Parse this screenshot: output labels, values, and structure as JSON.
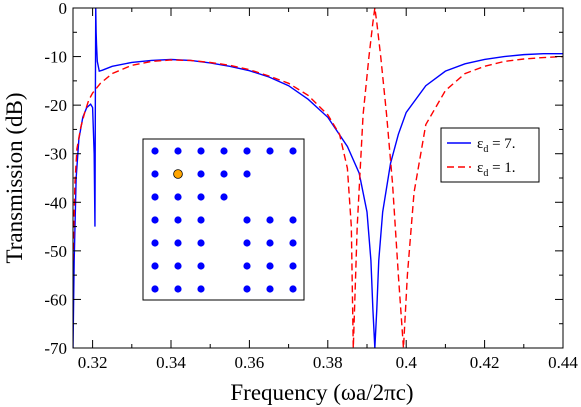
{
  "chart_data": {
    "type": "line",
    "xlabel": "Frequency (ωa/2πc)",
    "ylabel": "Transmission (dB)",
    "xlim": [
      0.315,
      0.44
    ],
    "ylim": [
      -70,
      0
    ],
    "xticks": [
      0.32,
      0.34,
      0.36,
      0.38,
      0.4,
      0.42,
      0.44
    ],
    "xtick_labels": [
      "0.32",
      "0.34",
      "0.36",
      "0.38",
      "0.4",
      "0.42",
      "0.44"
    ],
    "yticks": [
      0,
      -10,
      -20,
      -30,
      -40,
      -50,
      -60,
      -70
    ],
    "ytick_labels": [
      "0",
      "-10",
      "-20",
      "-30",
      "-40",
      "-50",
      "-60",
      "-70"
    ],
    "grid": false,
    "legend_position": "right",
    "series": [
      {
        "legend_symbol": "ε",
        "legend_sub": "d",
        "legend_suffix": " = 7.",
        "color": "#0000ff",
        "dash": "solid",
        "points": [
          [
            0.315,
            -70
          ],
          [
            0.3153,
            -52
          ],
          [
            0.3158,
            -35
          ],
          [
            0.3165,
            -27
          ],
          [
            0.3175,
            -22.5
          ],
          [
            0.3185,
            -20.5
          ],
          [
            0.3195,
            -19.8
          ],
          [
            0.32,
            -20.5
          ],
          [
            0.3204,
            -30
          ],
          [
            0.3206,
            -45
          ],
          [
            0.3207,
            -20
          ],
          [
            0.3208,
            0
          ],
          [
            0.3209,
            -5
          ],
          [
            0.321,
            -7.5
          ],
          [
            0.3212,
            -11
          ],
          [
            0.3217,
            -13
          ],
          [
            0.3225,
            -12.8
          ],
          [
            0.325,
            -12
          ],
          [
            0.33,
            -11.2
          ],
          [
            0.335,
            -10.8
          ],
          [
            0.34,
            -10.6
          ],
          [
            0.345,
            -10.8
          ],
          [
            0.35,
            -11.3
          ],
          [
            0.355,
            -12.0
          ],
          [
            0.36,
            -12.9
          ],
          [
            0.365,
            -14.2
          ],
          [
            0.37,
            -16.0
          ],
          [
            0.375,
            -18.8
          ],
          [
            0.38,
            -22.5
          ],
          [
            0.385,
            -28.5
          ],
          [
            0.388,
            -34
          ],
          [
            0.39,
            -42
          ],
          [
            0.391,
            -52
          ],
          [
            0.3915,
            -62
          ],
          [
            0.392,
            -70
          ],
          [
            0.3925,
            -62
          ],
          [
            0.393,
            -52
          ],
          [
            0.394,
            -42
          ],
          [
            0.396,
            -32
          ],
          [
            0.398,
            -26
          ],
          [
            0.4,
            -21.5
          ],
          [
            0.405,
            -16
          ],
          [
            0.41,
            -13
          ],
          [
            0.415,
            -11.5
          ],
          [
            0.42,
            -10.6
          ],
          [
            0.425,
            -10
          ],
          [
            0.43,
            -9.6
          ],
          [
            0.435,
            -9.4
          ],
          [
            0.44,
            -9.4
          ]
        ]
      },
      {
        "legend_symbol": "ε",
        "legend_sub": "d",
        "legend_suffix": " = 1.",
        "color": "#ff0000",
        "dash": "dashed",
        "points": [
          [
            0.315,
            -52
          ],
          [
            0.3155,
            -36
          ],
          [
            0.316,
            -29
          ],
          [
            0.317,
            -24.5
          ],
          [
            0.318,
            -21.5
          ],
          [
            0.319,
            -19
          ],
          [
            0.32,
            -17.5
          ],
          [
            0.322,
            -15.5
          ],
          [
            0.325,
            -13.5
          ],
          [
            0.33,
            -11.8
          ],
          [
            0.335,
            -11.0
          ],
          [
            0.34,
            -10.7
          ],
          [
            0.345,
            -10.8
          ],
          [
            0.35,
            -11.2
          ],
          [
            0.355,
            -11.8
          ],
          [
            0.36,
            -12.7
          ],
          [
            0.365,
            -14
          ],
          [
            0.37,
            -15.5
          ],
          [
            0.375,
            -18
          ],
          [
            0.38,
            -22
          ],
          [
            0.383,
            -26
          ],
          [
            0.385,
            -33
          ],
          [
            0.386,
            -45
          ],
          [
            0.3865,
            -70
          ],
          [
            0.3875,
            -45
          ],
          [
            0.389,
            -22
          ],
          [
            0.3905,
            -10
          ],
          [
            0.3915,
            -3
          ],
          [
            0.392,
            0
          ],
          [
            0.3925,
            -3
          ],
          [
            0.3935,
            -10
          ],
          [
            0.395,
            -22
          ],
          [
            0.3965,
            -36
          ],
          [
            0.398,
            -55
          ],
          [
            0.3993,
            -70
          ],
          [
            0.4003,
            -55
          ],
          [
            0.402,
            -38
          ],
          [
            0.405,
            -24
          ],
          [
            0.41,
            -17
          ],
          [
            0.415,
            -13.5
          ],
          [
            0.42,
            -12
          ],
          [
            0.425,
            -11
          ],
          [
            0.43,
            -10.5
          ],
          [
            0.435,
            -10.2
          ],
          [
            0.44,
            -10
          ]
        ]
      }
    ],
    "inset": {
      "rows": 7,
      "cols": 7,
      "dot_color": "#0000ff",
      "special_color": "#ffa500",
      "special": [
        1,
        1
      ],
      "missing": [
        [
          2,
          4
        ],
        [
          2,
          5
        ],
        [
          2,
          6
        ],
        [
          3,
          3
        ],
        [
          4,
          3
        ],
        [
          5,
          3
        ],
        [
          6,
          3
        ],
        [
          1,
          5
        ],
        [
          1,
          6
        ]
      ],
      "extra_present": [
        [
          2,
          2
        ]
      ]
    }
  }
}
